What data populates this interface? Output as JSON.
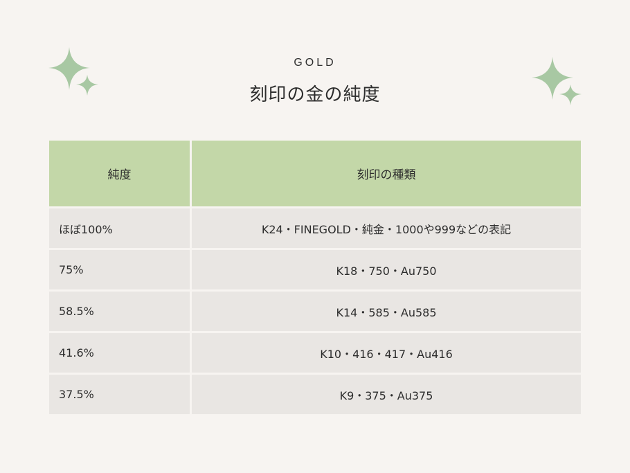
{
  "header": {
    "eyebrow": "GOLD",
    "title": "刻印の金の純度"
  },
  "table": {
    "columns": [
      "純度",
      "刻印の種類"
    ],
    "rows": [
      [
        "ほぼ100%",
        "K24・FINEGOLD・純金・1000や999などの表記"
      ],
      [
        "75%",
        "K18・750・Au750"
      ],
      [
        "58.5%",
        "K14・585・Au585"
      ],
      [
        "41.6%",
        "K10・416・417・Au416"
      ],
      [
        "37.5%",
        "K9・375・Au375"
      ]
    ]
  },
  "colors": {
    "background": "#f7f4f1",
    "header_fill": "#c3d7a8",
    "row_fill": "#e9e6e3",
    "sparkle": "#a8c8a3"
  },
  "icons": [
    "sparkle-icon"
  ]
}
